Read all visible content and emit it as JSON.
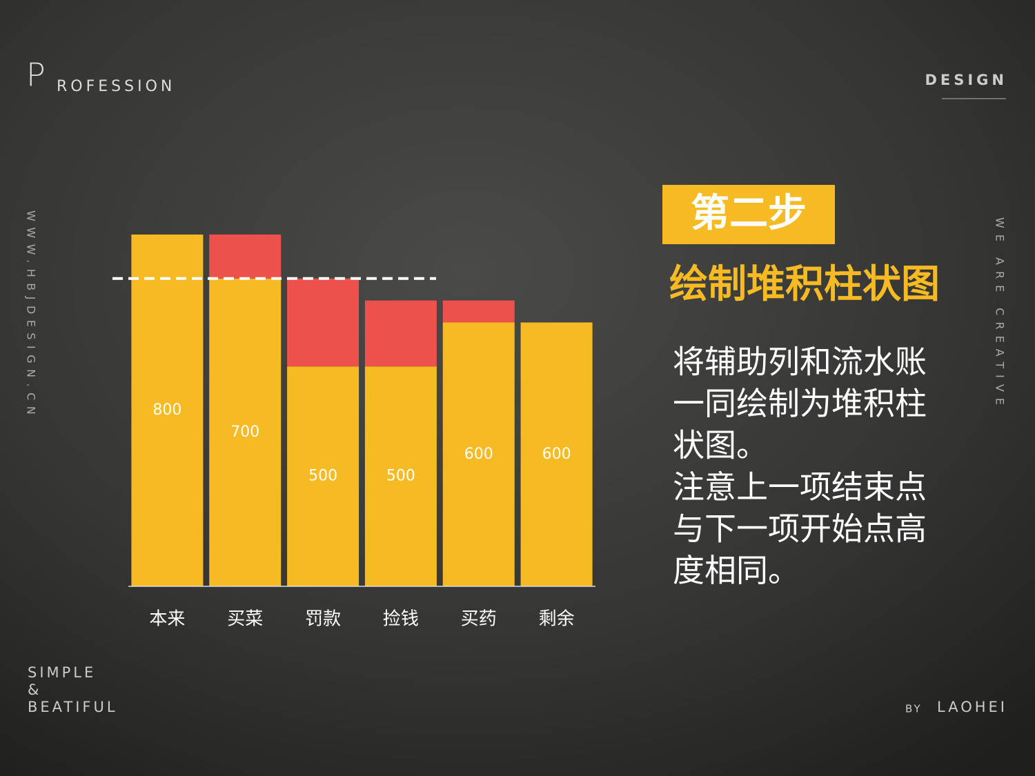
{
  "header": {
    "logo_initial": "P",
    "logo_rest": "ROFESSION",
    "tag": "DESIGN"
  },
  "side": {
    "left": "WWW.HBJDESIGN.CN",
    "right": "WE ARE CREATIVE"
  },
  "footer": {
    "left_lines": [
      "SIMPLE",
      "&",
      "BEATIFUL"
    ],
    "by": "BY",
    "author": "LAOHEI"
  },
  "panel": {
    "step": "第二步",
    "heading": "绘制堆积柱状图",
    "body_lines": [
      "将辅助列和流水账",
      "一同绘制为堆积柱",
      "状图。",
      "注意上一项结束点",
      "与下一项开始点高",
      "度相同。"
    ]
  },
  "chart_data": {
    "type": "stacked_bar",
    "categories": [
      "本来",
      "买菜",
      "罚款",
      "捡钱",
      "买药",
      "剩余"
    ],
    "series": [
      {
        "color": "#f6bb22",
        "values": [
          800,
          700,
          500,
          500,
          600,
          600
        ]
      },
      {
        "color": "#ee504c",
        "values": [
          0,
          100,
          200,
          150,
          50,
          0
        ]
      }
    ],
    "ylim": [
      0,
      800
    ],
    "reference_line": 700
  }
}
